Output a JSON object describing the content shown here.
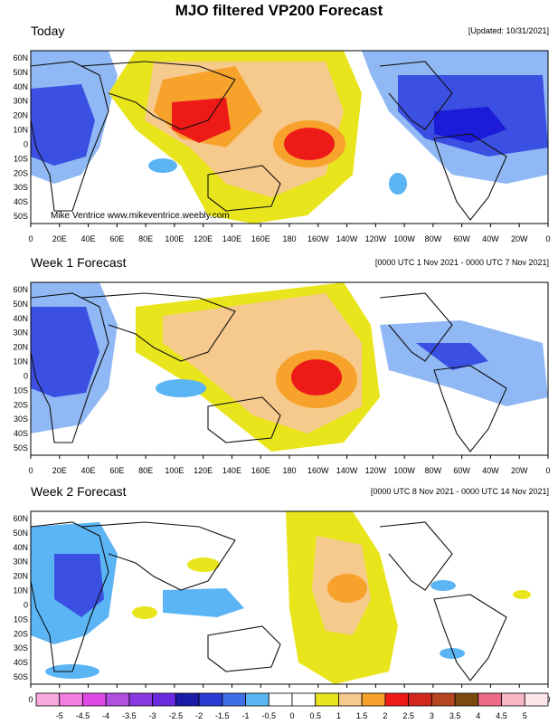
{
  "title": "MJO filtered VP200 Forecast",
  "credit": "Mike Ventrice www.mikeventrice.weebly.com",
  "lat_labels": [
    "60N",
    "50N",
    "40N",
    "30N",
    "20N",
    "10N",
    "0",
    "10S",
    "20S",
    "30S",
    "40S",
    "50S"
  ],
  "lon_labels": [
    "0",
    "20E",
    "40E",
    "60E",
    "80E",
    "100E",
    "120E",
    "140E",
    "160E",
    "180",
    "160W",
    "140W",
    "120W",
    "100W",
    "80W",
    "60W",
    "40W",
    "20W",
    "0"
  ],
  "colors": {
    "blue_dark": "#1b1bd8",
    "blue": "#3b4fe3",
    "blue_light": "#8fb8f4",
    "sky": "#5bb4f4",
    "yellow": "#e9e51c",
    "tan": "#f6c98c",
    "orange": "#f7a22b",
    "red": "#ee1a18",
    "continent": "#111111"
  },
  "panels": [
    {
      "id": "today",
      "title": "Today",
      "note": "[Updated: 10/31/2021]"
    },
    {
      "id": "week1",
      "title": "Week 1 Forecast",
      "note": "[0000 UTC 1 Nov 2021 - 0000 UTC 7 Nov 2021]"
    },
    {
      "id": "week2",
      "title": "Week 2 Forecast",
      "note": "[0000 UTC 8 Nov 2021 - 0000 UTC 14 Nov 2021]"
    }
  ],
  "colorbar": {
    "labels": [
      "-5",
      "-4.5",
      "-4",
      "-3.5",
      "-3",
      "-2.5",
      "-2",
      "-1.5",
      "-1",
      "-0.5",
      "0",
      "0.5",
      "1",
      "1.5",
      "2",
      "2.5",
      "3",
      "3.5",
      "4",
      "4.5",
      "5"
    ],
    "colors": [
      "#f7a8dd",
      "#f27fe0",
      "#e049e6",
      "#b04fe0",
      "#8a38e0",
      "#6a2ae0",
      "#1a1aa8",
      "#2a3bd6",
      "#3f6ee8",
      "#5bb4f4",
      "#ffffff",
      "#ffffff",
      "#e9e51c",
      "#f6c98c",
      "#f7a22b",
      "#ee1a18",
      "#d2271f",
      "#b5461f",
      "#7a4a10",
      "#f06b8a",
      "#f6b6c3",
      "#fde6ea"
    ]
  }
}
